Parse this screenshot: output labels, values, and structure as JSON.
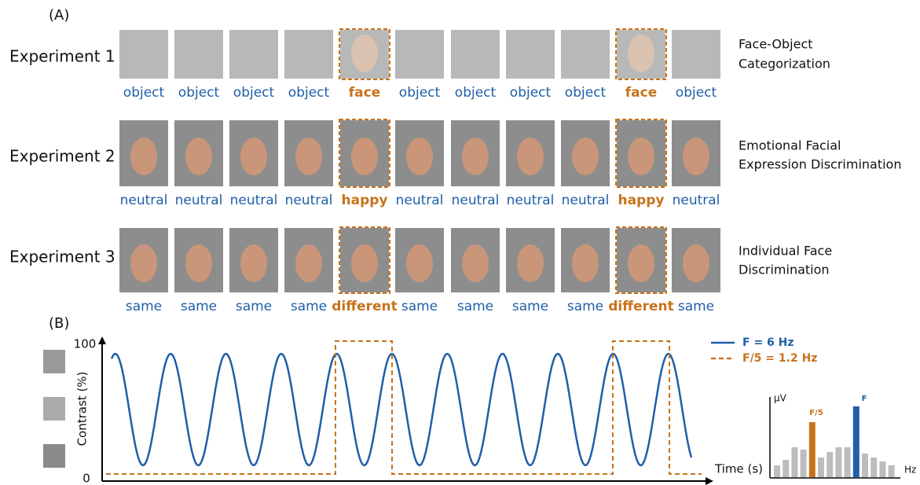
{
  "panel_a": {
    "label": "(A)",
    "experiments": [
      {
        "name": "Experiment 1",
        "task": [
          "Face-Object",
          "Categorization"
        ],
        "labels": [
          "object",
          "object",
          "object",
          "object",
          "face",
          "object",
          "object",
          "object",
          "object",
          "face",
          "object"
        ]
      },
      {
        "name": "Experiment 2",
        "task": [
          "Emotional Facial",
          "Expression Discrimination"
        ],
        "labels": [
          "neutral",
          "neutral",
          "neutral",
          "neutral",
          "happy",
          "neutral",
          "neutral",
          "neutral",
          "neutral",
          "happy",
          "neutral"
        ]
      },
      {
        "name": "Experiment 3",
        "task": [
          "Individual Face",
          "Discrimination"
        ],
        "labels": [
          "same",
          "same",
          "same",
          "same",
          "different",
          "same",
          "same",
          "same",
          "same",
          "different",
          "same"
        ]
      }
    ]
  },
  "panel_b": {
    "label": "(B)",
    "y_axis_label": "Contrast (%)",
    "y_tick_top": "100",
    "y_tick_bottom": "0",
    "x_axis_label": "Time (s)",
    "legend": [
      "F = 6 Hz",
      "F/5 = 1.2 Hz"
    ],
    "spectrum": {
      "y_label": "μV",
      "x_label": "Hz",
      "peak_labels": [
        "F/5",
        "F"
      ]
    }
  }
}
